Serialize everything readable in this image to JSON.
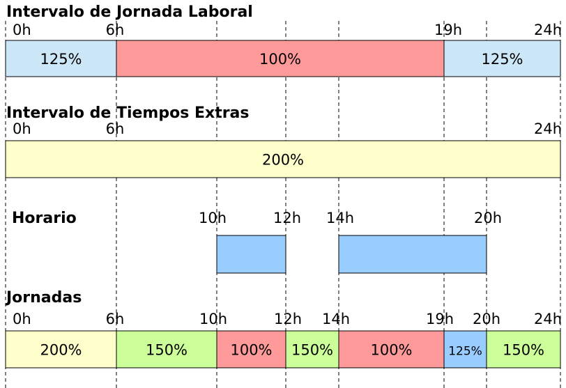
{
  "sections": [
    {
      "title": "Intervalo de Jornada Laboral",
      "hours": [
        "0h",
        "6h",
        "19h",
        "24h"
      ],
      "segments": [
        "125%",
        "100%",
        "125%"
      ]
    },
    {
      "title": "Intervalo de Tiempos Extras",
      "hours": [
        "0h",
        "6h",
        "24h"
      ],
      "segments": [
        "200%"
      ]
    },
    {
      "title": "Horario",
      "hours": [
        "10h",
        "12h",
        "14h",
        "20h"
      ]
    },
    {
      "title": "Jornadas",
      "hours": [
        "0h",
        "6h",
        "10h",
        "12h",
        "14h",
        "19h",
        "20h",
        "24h"
      ],
      "segments": [
        "200%",
        "150%",
        "100%",
        "150%",
        "100%",
        "125%",
        "150%"
      ]
    }
  ]
}
